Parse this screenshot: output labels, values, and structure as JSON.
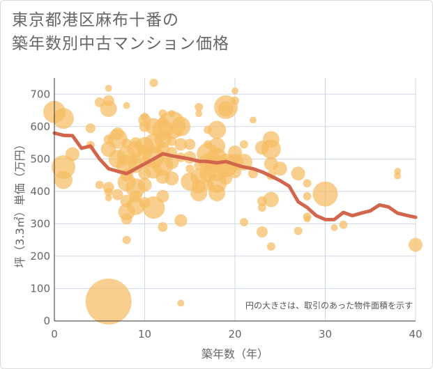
{
  "title": {
    "line1": "東京都港区麻布十番の",
    "line2": "築年数別中古マンション価格"
  },
  "chart_data": {
    "type": "scatter",
    "xlabel": "築年数（年）",
    "ylabel": "坪（3.3㎡）単価（万円）",
    "xlim": [
      0,
      40
    ],
    "ylim": [
      0,
      750
    ],
    "x_ticks": [
      "0",
      "10",
      "20",
      "30",
      "40"
    ],
    "y_ticks": [
      "0",
      "100",
      "200",
      "300",
      "400",
      "500",
      "600",
      "700"
    ],
    "grid": true,
    "note": "円の大きさは、取引のあった物件面積を示す",
    "colors": {
      "bubble": "#f5bd63",
      "line": "#d2664c",
      "grid": "#cfd8e6",
      "text": "#666666"
    },
    "line_series": {
      "x": [
        0,
        1,
        2,
        3,
        4,
        5,
        6,
        7,
        8,
        9,
        10,
        11,
        12,
        13,
        14,
        15,
        16,
        17,
        18,
        19,
        20,
        21,
        22,
        23,
        24,
        25,
        26,
        27,
        28,
        29,
        30,
        31,
        32,
        33,
        34,
        35,
        36,
        37,
        38,
        39,
        40
      ],
      "y": [
        580,
        573,
        572,
        533,
        540,
        500,
        470,
        462,
        455,
        470,
        485,
        500,
        516,
        510,
        505,
        500,
        493,
        492,
        488,
        492,
        483,
        475,
        470,
        460,
        447,
        433,
        416,
        368,
        350,
        325,
        313,
        313,
        335,
        325,
        333,
        340,
        358,
        352,
        333,
        326,
        320
      ]
    },
    "bubbles": [
      {
        "x": 0,
        "y": 645,
        "r": 16
      },
      {
        "x": 1,
        "y": 625,
        "r": 15
      },
      {
        "x": 1,
        "y": 475,
        "r": 17
      },
      {
        "x": 1,
        "y": 435,
        "r": 13
      },
      {
        "x": 2,
        "y": 515,
        "r": 10
      },
      {
        "x": 4,
        "y": 595,
        "r": 7
      },
      {
        "x": 4,
        "y": 543,
        "r": 6
      },
      {
        "x": 5,
        "y": 675,
        "r": 7
      },
      {
        "x": 5,
        "y": 420,
        "r": 6
      },
      {
        "x": 6,
        "y": 718,
        "r": 5
      },
      {
        "x": 6,
        "y": 680,
        "r": 8
      },
      {
        "x": 6,
        "y": 655,
        "r": 12
      },
      {
        "x": 6,
        "y": 560,
        "r": 7
      },
      {
        "x": 6,
        "y": 530,
        "r": 11
      },
      {
        "x": 6,
        "y": 412,
        "r": 8
      },
      {
        "x": 6,
        "y": 398,
        "r": 6
      },
      {
        "x": 6,
        "y": 380,
        "r": 5
      },
      {
        "x": 6,
        "y": 60,
        "r": 33
      },
      {
        "x": 7,
        "y": 578,
        "r": 9
      },
      {
        "x": 7,
        "y": 562,
        "r": 14
      },
      {
        "x": 7,
        "y": 500,
        "r": 13
      },
      {
        "x": 7,
        "y": 390,
        "r": 8
      },
      {
        "x": 8,
        "y": 665,
        "r": 5
      },
      {
        "x": 8,
        "y": 548,
        "r": 7
      },
      {
        "x": 8,
        "y": 510,
        "r": 14
      },
      {
        "x": 8,
        "y": 480,
        "r": 15
      },
      {
        "x": 8,
        "y": 450,
        "r": 9
      },
      {
        "x": 8,
        "y": 428,
        "r": 13
      },
      {
        "x": 8,
        "y": 370,
        "r": 9
      },
      {
        "x": 8,
        "y": 337,
        "r": 12
      },
      {
        "x": 8,
        "y": 315,
        "r": 8
      },
      {
        "x": 8,
        "y": 250,
        "r": 6
      },
      {
        "x": 9,
        "y": 550,
        "r": 8
      },
      {
        "x": 9,
        "y": 530,
        "r": 12
      },
      {
        "x": 9,
        "y": 500,
        "r": 7
      },
      {
        "x": 9,
        "y": 480,
        "r": 11
      },
      {
        "x": 9,
        "y": 410,
        "r": 14
      },
      {
        "x": 9,
        "y": 385,
        "r": 9
      },
      {
        "x": 9,
        "y": 355,
        "r": 13
      },
      {
        "x": 10,
        "y": 630,
        "r": 6
      },
      {
        "x": 10,
        "y": 620,
        "r": 9
      },
      {
        "x": 10,
        "y": 600,
        "r": 8
      },
      {
        "x": 10,
        "y": 540,
        "r": 13
      },
      {
        "x": 10,
        "y": 520,
        "r": 11
      },
      {
        "x": 10,
        "y": 488,
        "r": 8
      },
      {
        "x": 10,
        "y": 455,
        "r": 9
      },
      {
        "x": 10,
        "y": 420,
        "r": 10
      },
      {
        "x": 10,
        "y": 365,
        "r": 8
      },
      {
        "x": 11,
        "y": 735,
        "r": 6
      },
      {
        "x": 11,
        "y": 600,
        "r": 12
      },
      {
        "x": 11,
        "y": 548,
        "r": 14
      },
      {
        "x": 11,
        "y": 505,
        "r": 16
      },
      {
        "x": 11,
        "y": 465,
        "r": 12
      },
      {
        "x": 11,
        "y": 350,
        "r": 16
      },
      {
        "x": 12,
        "y": 640,
        "r": 6
      },
      {
        "x": 12,
        "y": 615,
        "r": 7
      },
      {
        "x": 12,
        "y": 590,
        "r": 15
      },
      {
        "x": 12,
        "y": 560,
        "r": 12
      },
      {
        "x": 12,
        "y": 530,
        "r": 10
      },
      {
        "x": 12,
        "y": 480,
        "r": 15
      },
      {
        "x": 12,
        "y": 445,
        "r": 10
      },
      {
        "x": 12,
        "y": 385,
        "r": 9
      },
      {
        "x": 12,
        "y": 290,
        "r": 7
      },
      {
        "x": 13,
        "y": 640,
        "r": 5
      },
      {
        "x": 13,
        "y": 605,
        "r": 20
      },
      {
        "x": 13,
        "y": 555,
        "r": 7
      },
      {
        "x": 13,
        "y": 520,
        "r": 8
      },
      {
        "x": 13,
        "y": 490,
        "r": 10
      },
      {
        "x": 13,
        "y": 440,
        "r": 10
      },
      {
        "x": 14,
        "y": 600,
        "r": 14
      },
      {
        "x": 14,
        "y": 545,
        "r": 9
      },
      {
        "x": 14,
        "y": 505,
        "r": 7
      },
      {
        "x": 14,
        "y": 310,
        "r": 9
      },
      {
        "x": 14,
        "y": 55,
        "r": 5
      },
      {
        "x": 15,
        "y": 545,
        "r": 8
      },
      {
        "x": 15,
        "y": 505,
        "r": 9
      },
      {
        "x": 15,
        "y": 470,
        "r": 6
      },
      {
        "x": 15,
        "y": 430,
        "r": 13
      },
      {
        "x": 16,
        "y": 660,
        "r": 6
      },
      {
        "x": 16,
        "y": 640,
        "r": 5
      },
      {
        "x": 16,
        "y": 480,
        "r": 7
      },
      {
        "x": 16,
        "y": 445,
        "r": 12
      },
      {
        "x": 16,
        "y": 415,
        "r": 10
      },
      {
        "x": 16,
        "y": 395,
        "r": 12
      },
      {
        "x": 17,
        "y": 590,
        "r": 6
      },
      {
        "x": 17,
        "y": 545,
        "r": 6
      },
      {
        "x": 17,
        "y": 515,
        "r": 16
      },
      {
        "x": 17,
        "y": 490,
        "r": 13
      },
      {
        "x": 17,
        "y": 455,
        "r": 12
      },
      {
        "x": 17,
        "y": 420,
        "r": 8
      },
      {
        "x": 18,
        "y": 590,
        "r": 13
      },
      {
        "x": 18,
        "y": 540,
        "r": 12
      },
      {
        "x": 18,
        "y": 505,
        "r": 14
      },
      {
        "x": 18,
        "y": 470,
        "r": 18
      },
      {
        "x": 18,
        "y": 425,
        "r": 14
      },
      {
        "x": 18,
        "y": 395,
        "r": 12
      },
      {
        "x": 19,
        "y": 660,
        "r": 17
      },
      {
        "x": 19,
        "y": 655,
        "r": 11
      },
      {
        "x": 19,
        "y": 480,
        "r": 17
      },
      {
        "x": 19,
        "y": 440,
        "r": 9
      },
      {
        "x": 20,
        "y": 710,
        "r": 5
      },
      {
        "x": 20,
        "y": 680,
        "r": 6
      },
      {
        "x": 20,
        "y": 520,
        "r": 10
      },
      {
        "x": 20,
        "y": 490,
        "r": 12
      },
      {
        "x": 20,
        "y": 460,
        "r": 9
      },
      {
        "x": 21,
        "y": 545,
        "r": 6
      },
      {
        "x": 21,
        "y": 490,
        "r": 12
      },
      {
        "x": 21,
        "y": 305,
        "r": 6
      },
      {
        "x": 22,
        "y": 620,
        "r": 5
      },
      {
        "x": 22,
        "y": 455,
        "r": 7
      },
      {
        "x": 23,
        "y": 535,
        "r": 10
      },
      {
        "x": 23,
        "y": 370,
        "r": 7
      },
      {
        "x": 23,
        "y": 350,
        "r": 6
      },
      {
        "x": 23,
        "y": 275,
        "r": 8
      },
      {
        "x": 24,
        "y": 560,
        "r": 12
      },
      {
        "x": 24,
        "y": 530,
        "r": 14
      },
      {
        "x": 24,
        "y": 485,
        "r": 10
      },
      {
        "x": 24,
        "y": 450,
        "r": 7
      },
      {
        "x": 24,
        "y": 375,
        "r": 11
      },
      {
        "x": 24,
        "y": 230,
        "r": 6
      },
      {
        "x": 25,
        "y": 470,
        "r": 10
      },
      {
        "x": 27,
        "y": 455,
        "r": 10
      },
      {
        "x": 27,
        "y": 278,
        "r": 6
      },
      {
        "x": 28,
        "y": 425,
        "r": 6
      },
      {
        "x": 28,
        "y": 385,
        "r": 6
      },
      {
        "x": 28,
        "y": 322,
        "r": 6
      },
      {
        "x": 28,
        "y": 315,
        "r": 5
      },
      {
        "x": 30,
        "y": 392,
        "r": 18
      },
      {
        "x": 31,
        "y": 288,
        "r": 5
      },
      {
        "x": 32,
        "y": 297,
        "r": 6
      },
      {
        "x": 38,
        "y": 462,
        "r": 5
      },
      {
        "x": 38,
        "y": 448,
        "r": 5
      },
      {
        "x": 40,
        "y": 235,
        "r": 10
      }
    ]
  }
}
